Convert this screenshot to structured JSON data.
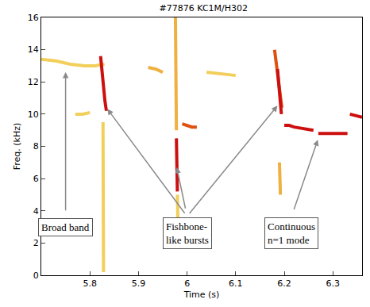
{
  "chart_data": {
    "type": "line",
    "title": "#77876 KC1M/H302",
    "x_label": "Time (s)",
    "y_label": "Freq. (kHz)",
    "xlim": [
      5.7,
      6.36
    ],
    "xticks": [
      5.8,
      5.9,
      6,
      6.1,
      6.2,
      6.3
    ],
    "ylim": [
      0,
      16
    ],
    "yticks": [
      0,
      2,
      4,
      6,
      8,
      10,
      12,
      14,
      16
    ],
    "grid": false,
    "series": [
      {
        "color": "#f2cf5a",
        "x": [
          5.7,
          5.73,
          5.76,
          5.79,
          5.81,
          5.83
        ],
        "values": [
          13.4,
          13.3,
          13.1,
          13.0,
          13.0,
          13.1
        ]
      },
      {
        "color": "#f2cf5a",
        "x": [
          5.77,
          5.785,
          5.8
        ],
        "values": [
          10.0,
          10.0,
          10.1
        ]
      },
      {
        "color": "#f0b040",
        "x": [
          5.92,
          5.935,
          5.95
        ],
        "values": [
          12.9,
          12.8,
          12.6
        ]
      },
      {
        "color": "#f2cf5a",
        "x": [
          6.04,
          6.07,
          6.1
        ],
        "values": [
          12.6,
          12.5,
          12.4
        ]
      },
      {
        "color": "#f2cf5a",
        "x": [
          5.827,
          5.828
        ],
        "values": [
          9.5,
          0.2
        ]
      },
      {
        "color": "#cc1010",
        "x": [
          5.822,
          5.825,
          5.828,
          5.831,
          5.834
        ],
        "values": [
          13.6,
          12.6,
          11.6,
          10.8,
          10.2
        ]
      },
      {
        "color": "#f0b040",
        "x": [
          5.976,
          5.977,
          5.978
        ],
        "values": [
          16.0,
          12.0,
          9.0
        ]
      },
      {
        "color": "#cc1010",
        "x": [
          5.978,
          5.979,
          5.98
        ],
        "values": [
          8.5,
          6.8,
          5.2
        ]
      },
      {
        "color": "#f2cf5a",
        "x": [
          5.98,
          5.981
        ],
        "values": [
          5.0,
          3.5
        ]
      },
      {
        "color": "#e05010",
        "x": [
          5.99,
          6.0,
          6.01,
          6.02
        ],
        "values": [
          9.4,
          9.3,
          9.2,
          9.2
        ]
      },
      {
        "color": "#e05010",
        "x": [
          6.18,
          6.185,
          6.19,
          6.195
        ],
        "values": [
          14.0,
          12.8,
          11.6,
          10.4
        ]
      },
      {
        "color": "#cc1010",
        "x": [
          6.186,
          6.19,
          6.194
        ],
        "values": [
          12.8,
          11.3,
          10.0
        ]
      },
      {
        "color": "#f0b040",
        "x": [
          6.19,
          6.192
        ],
        "values": [
          7.0,
          5.0
        ]
      },
      {
        "color": "#cc1010",
        "x": [
          6.2,
          6.21,
          6.22,
          6.24,
          6.26
        ],
        "values": [
          9.3,
          9.3,
          9.2,
          9.1,
          9.0
        ]
      },
      {
        "color": "#cc1010",
        "x": [
          6.27,
          6.29,
          6.31,
          6.33
        ],
        "values": [
          8.8,
          8.8,
          8.8,
          8.8
        ]
      },
      {
        "color": "#cc1010",
        "x": [
          6.335,
          6.345,
          6.36
        ],
        "values": [
          10.0,
          9.9,
          9.8
        ]
      }
    ],
    "annotations": [
      {
        "text": "Broad band",
        "x": 5.75,
        "y": 3.0,
        "arrows": [
          [
            5.75,
            12.7
          ]
        ]
      },
      {
        "text": "Fishbone-like bursts",
        "x": 6.0,
        "y": 2.6,
        "arrows": [
          [
            5.834,
            10.4
          ],
          [
            5.978,
            6.8
          ],
          [
            6.188,
            10.6
          ]
        ]
      },
      {
        "text": "Continuous n=1 mode",
        "x": 6.215,
        "y": 2.6,
        "arrows": [
          [
            6.27,
            8.5
          ]
        ]
      }
    ]
  }
}
